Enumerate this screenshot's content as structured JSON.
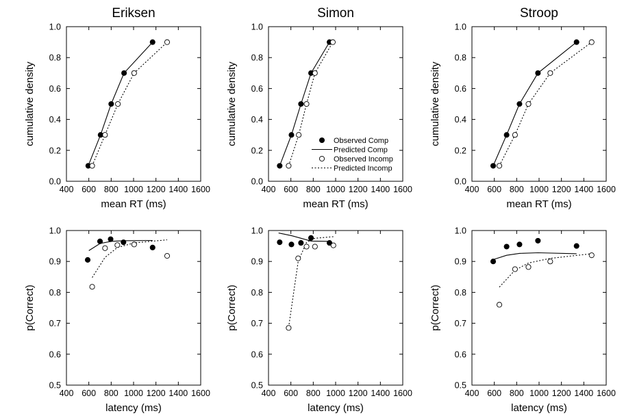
{
  "chart_data": [
    {
      "type": "line",
      "title": "Eriksen",
      "xlabel": "mean RT (ms)",
      "ylabel": "cumulative density",
      "xlim": [
        400,
        1600
      ],
      "ylim": [
        0,
        1
      ],
      "xticks": [
        "400",
        "600",
        "800",
        "1000",
        "1200",
        "1400",
        "1600"
      ],
      "yticks": [
        "0.0",
        "0.2",
        "0.4",
        "0.6",
        "0.8",
        "1.0"
      ],
      "series": [
        {
          "name": "Observed Comp",
          "kind": "filled",
          "x": [
            595,
            705,
            800,
            915,
            1170
          ],
          "y": [
            0.1,
            0.3,
            0.5,
            0.7,
            0.9
          ]
        },
        {
          "name": "Predicted Comp",
          "kind": "solid",
          "x": [
            595,
            705,
            800,
            915,
            1170
          ],
          "y": [
            0.1,
            0.3,
            0.5,
            0.7,
            0.9
          ]
        },
        {
          "name": "Observed Incomp",
          "kind": "open",
          "x": [
            630,
            745,
            860,
            1005,
            1300
          ],
          "y": [
            0.1,
            0.3,
            0.5,
            0.7,
            0.9
          ]
        },
        {
          "name": "Predicted Incomp",
          "kind": "dotted",
          "x": [
            630,
            745,
            860,
            1005,
            1300
          ],
          "y": [
            0.1,
            0.3,
            0.5,
            0.7,
            0.9
          ]
        }
      ]
    },
    {
      "type": "line",
      "title": "Simon",
      "xlabel": "mean RT (ms)",
      "ylabel": "cumulative density",
      "xlim": [
        400,
        1600
      ],
      "ylim": [
        0,
        1
      ],
      "xticks": [
        "400",
        "600",
        "800",
        "1000",
        "1200",
        "1400",
        "1600"
      ],
      "yticks": [
        "0.0",
        "0.2",
        "0.4",
        "0.6",
        "0.8",
        "1.0"
      ],
      "legend": true,
      "series": [
        {
          "name": "Observed Comp",
          "kind": "filled",
          "x": [
            500,
            605,
            690,
            780,
            945
          ],
          "y": [
            0.1,
            0.3,
            0.5,
            0.7,
            0.9
          ]
        },
        {
          "name": "Predicted Comp",
          "kind": "solid",
          "x": [
            500,
            605,
            690,
            780,
            945
          ],
          "y": [
            0.1,
            0.3,
            0.5,
            0.7,
            0.9
          ]
        },
        {
          "name": "Observed Incomp",
          "kind": "open",
          "x": [
            580,
            670,
            740,
            815,
            975
          ],
          "y": [
            0.1,
            0.3,
            0.5,
            0.7,
            0.9
          ]
        },
        {
          "name": "Predicted Incomp",
          "kind": "dotted",
          "x": [
            580,
            670,
            740,
            815,
            975
          ],
          "y": [
            0.1,
            0.3,
            0.5,
            0.7,
            0.9
          ]
        }
      ]
    },
    {
      "type": "line",
      "title": "Stroop",
      "xlabel": "mean RT (ms)",
      "ylabel": "cumulative density",
      "xlim": [
        400,
        1600
      ],
      "ylim": [
        0,
        1
      ],
      "xticks": [
        "400",
        "600",
        "800",
        "1000",
        "1200",
        "1400",
        "1600"
      ],
      "yticks": [
        "0.0",
        "0.2",
        "0.4",
        "0.6",
        "0.8",
        "1.0"
      ],
      "series": [
        {
          "name": "Observed Comp",
          "kind": "filled",
          "x": [
            590,
            710,
            825,
            990,
            1335
          ],
          "y": [
            0.1,
            0.3,
            0.5,
            0.7,
            0.9
          ]
        },
        {
          "name": "Predicted Comp",
          "kind": "solid",
          "x": [
            590,
            710,
            825,
            990,
            1335
          ],
          "y": [
            0.1,
            0.3,
            0.5,
            0.7,
            0.9
          ]
        },
        {
          "name": "Observed Incomp",
          "kind": "open",
          "x": [
            645,
            785,
            905,
            1100,
            1470
          ],
          "y": [
            0.1,
            0.3,
            0.5,
            0.7,
            0.9
          ]
        },
        {
          "name": "Predicted Incomp",
          "kind": "dotted",
          "x": [
            645,
            785,
            905,
            1100,
            1470
          ],
          "y": [
            0.1,
            0.3,
            0.5,
            0.7,
            0.9
          ]
        }
      ]
    },
    {
      "type": "scatter",
      "title": "",
      "xlabel": "latency (ms)",
      "ylabel": "p(Correct)",
      "xlim": [
        400,
        1600
      ],
      "ylim": [
        0.5,
        1
      ],
      "xticks": [
        "400",
        "600",
        "800",
        "1000",
        "1200",
        "1400",
        "1600"
      ],
      "yticks": [
        "0.5",
        "0.6",
        "0.7",
        "0.8",
        "0.9",
        "1.0"
      ],
      "series": [
        {
          "name": "Observed Comp",
          "kind": "filled",
          "x": [
            590,
            700,
            795,
            910,
            1170
          ],
          "y": [
            0.905,
            0.965,
            0.972,
            0.962,
            0.945
          ]
        },
        {
          "name": "Predicted Comp",
          "kind": "solid",
          "x": [
            600,
            700,
            800,
            910,
            1170
          ],
          "y": [
            0.935,
            0.958,
            0.965,
            0.967,
            0.968
          ]
        },
        {
          "name": "Observed Incomp",
          "kind": "open",
          "x": [
            630,
            745,
            855,
            1005,
            1300
          ],
          "y": [
            0.818,
            0.943,
            0.953,
            0.955,
            0.918
          ]
        },
        {
          "name": "Predicted Incomp",
          "kind": "dotted",
          "x": [
            630,
            745,
            855,
            1005,
            1300
          ],
          "y": [
            0.848,
            0.913,
            0.945,
            0.96,
            0.97
          ]
        }
      ]
    },
    {
      "type": "scatter",
      "title": "",
      "xlabel": "latency (ms)",
      "ylabel": "p(Correct)",
      "xlim": [
        400,
        1600
      ],
      "ylim": [
        0.5,
        1
      ],
      "xticks": [
        "400",
        "600",
        "800",
        "1000",
        "1200",
        "1400",
        "1600"
      ],
      "yticks": [
        "0.5",
        "0.6",
        "0.7",
        "0.8",
        "0.9",
        "1.0"
      ],
      "series": [
        {
          "name": "Observed Comp",
          "kind": "filled",
          "x": [
            500,
            605,
            690,
            780,
            945
          ],
          "y": [
            0.962,
            0.955,
            0.96,
            0.976,
            0.96
          ]
        },
        {
          "name": "Predicted Comp",
          "kind": "solid",
          "x": [
            490,
            610,
            690,
            780,
            945
          ],
          "y": [
            0.992,
            0.983,
            0.975,
            0.966,
            0.965
          ]
        },
        {
          "name": "Observed Incomp",
          "kind": "open",
          "x": [
            580,
            665,
            740,
            815,
            980
          ],
          "y": [
            0.685,
            0.91,
            0.948,
            0.948,
            0.952
          ]
        },
        {
          "name": "Predicted Incomp",
          "kind": "dotted",
          "x": [
            580,
            665,
            740,
            815,
            980
          ],
          "y": [
            0.687,
            0.9,
            0.962,
            0.975,
            0.98
          ]
        }
      ]
    },
    {
      "type": "scatter",
      "title": "",
      "xlabel": "latency (ms)",
      "ylabel": "p(Correct)",
      "xlim": [
        400,
        1600
      ],
      "ylim": [
        0.5,
        1
      ],
      "xticks": [
        "400",
        "600",
        "800",
        "1000",
        "1200",
        "1400",
        "1600"
      ],
      "yticks": [
        "0.5",
        "0.6",
        "0.7",
        "0.8",
        "0.9",
        "1.0"
      ],
      "series": [
        {
          "name": "Observed Comp",
          "kind": "filled",
          "x": [
            590,
            710,
            825,
            990,
            1335
          ],
          "y": [
            0.9,
            0.948,
            0.955,
            0.967,
            0.95
          ]
        },
        {
          "name": "Predicted Comp",
          "kind": "solid",
          "x": [
            590,
            710,
            825,
            990,
            1335
          ],
          "y": [
            0.906,
            0.92,
            0.926,
            0.928,
            0.925
          ]
        },
        {
          "name": "Observed Incomp",
          "kind": "open",
          "x": [
            645,
            785,
            905,
            1100,
            1470
          ],
          "y": [
            0.76,
            0.875,
            0.882,
            0.9,
            0.92
          ]
        },
        {
          "name": "Predicted Incomp",
          "kind": "dotted",
          "x": [
            645,
            785,
            905,
            1100,
            1470
          ],
          "y": [
            0.817,
            0.872,
            0.895,
            0.91,
            0.925
          ]
        }
      ]
    }
  ]
}
